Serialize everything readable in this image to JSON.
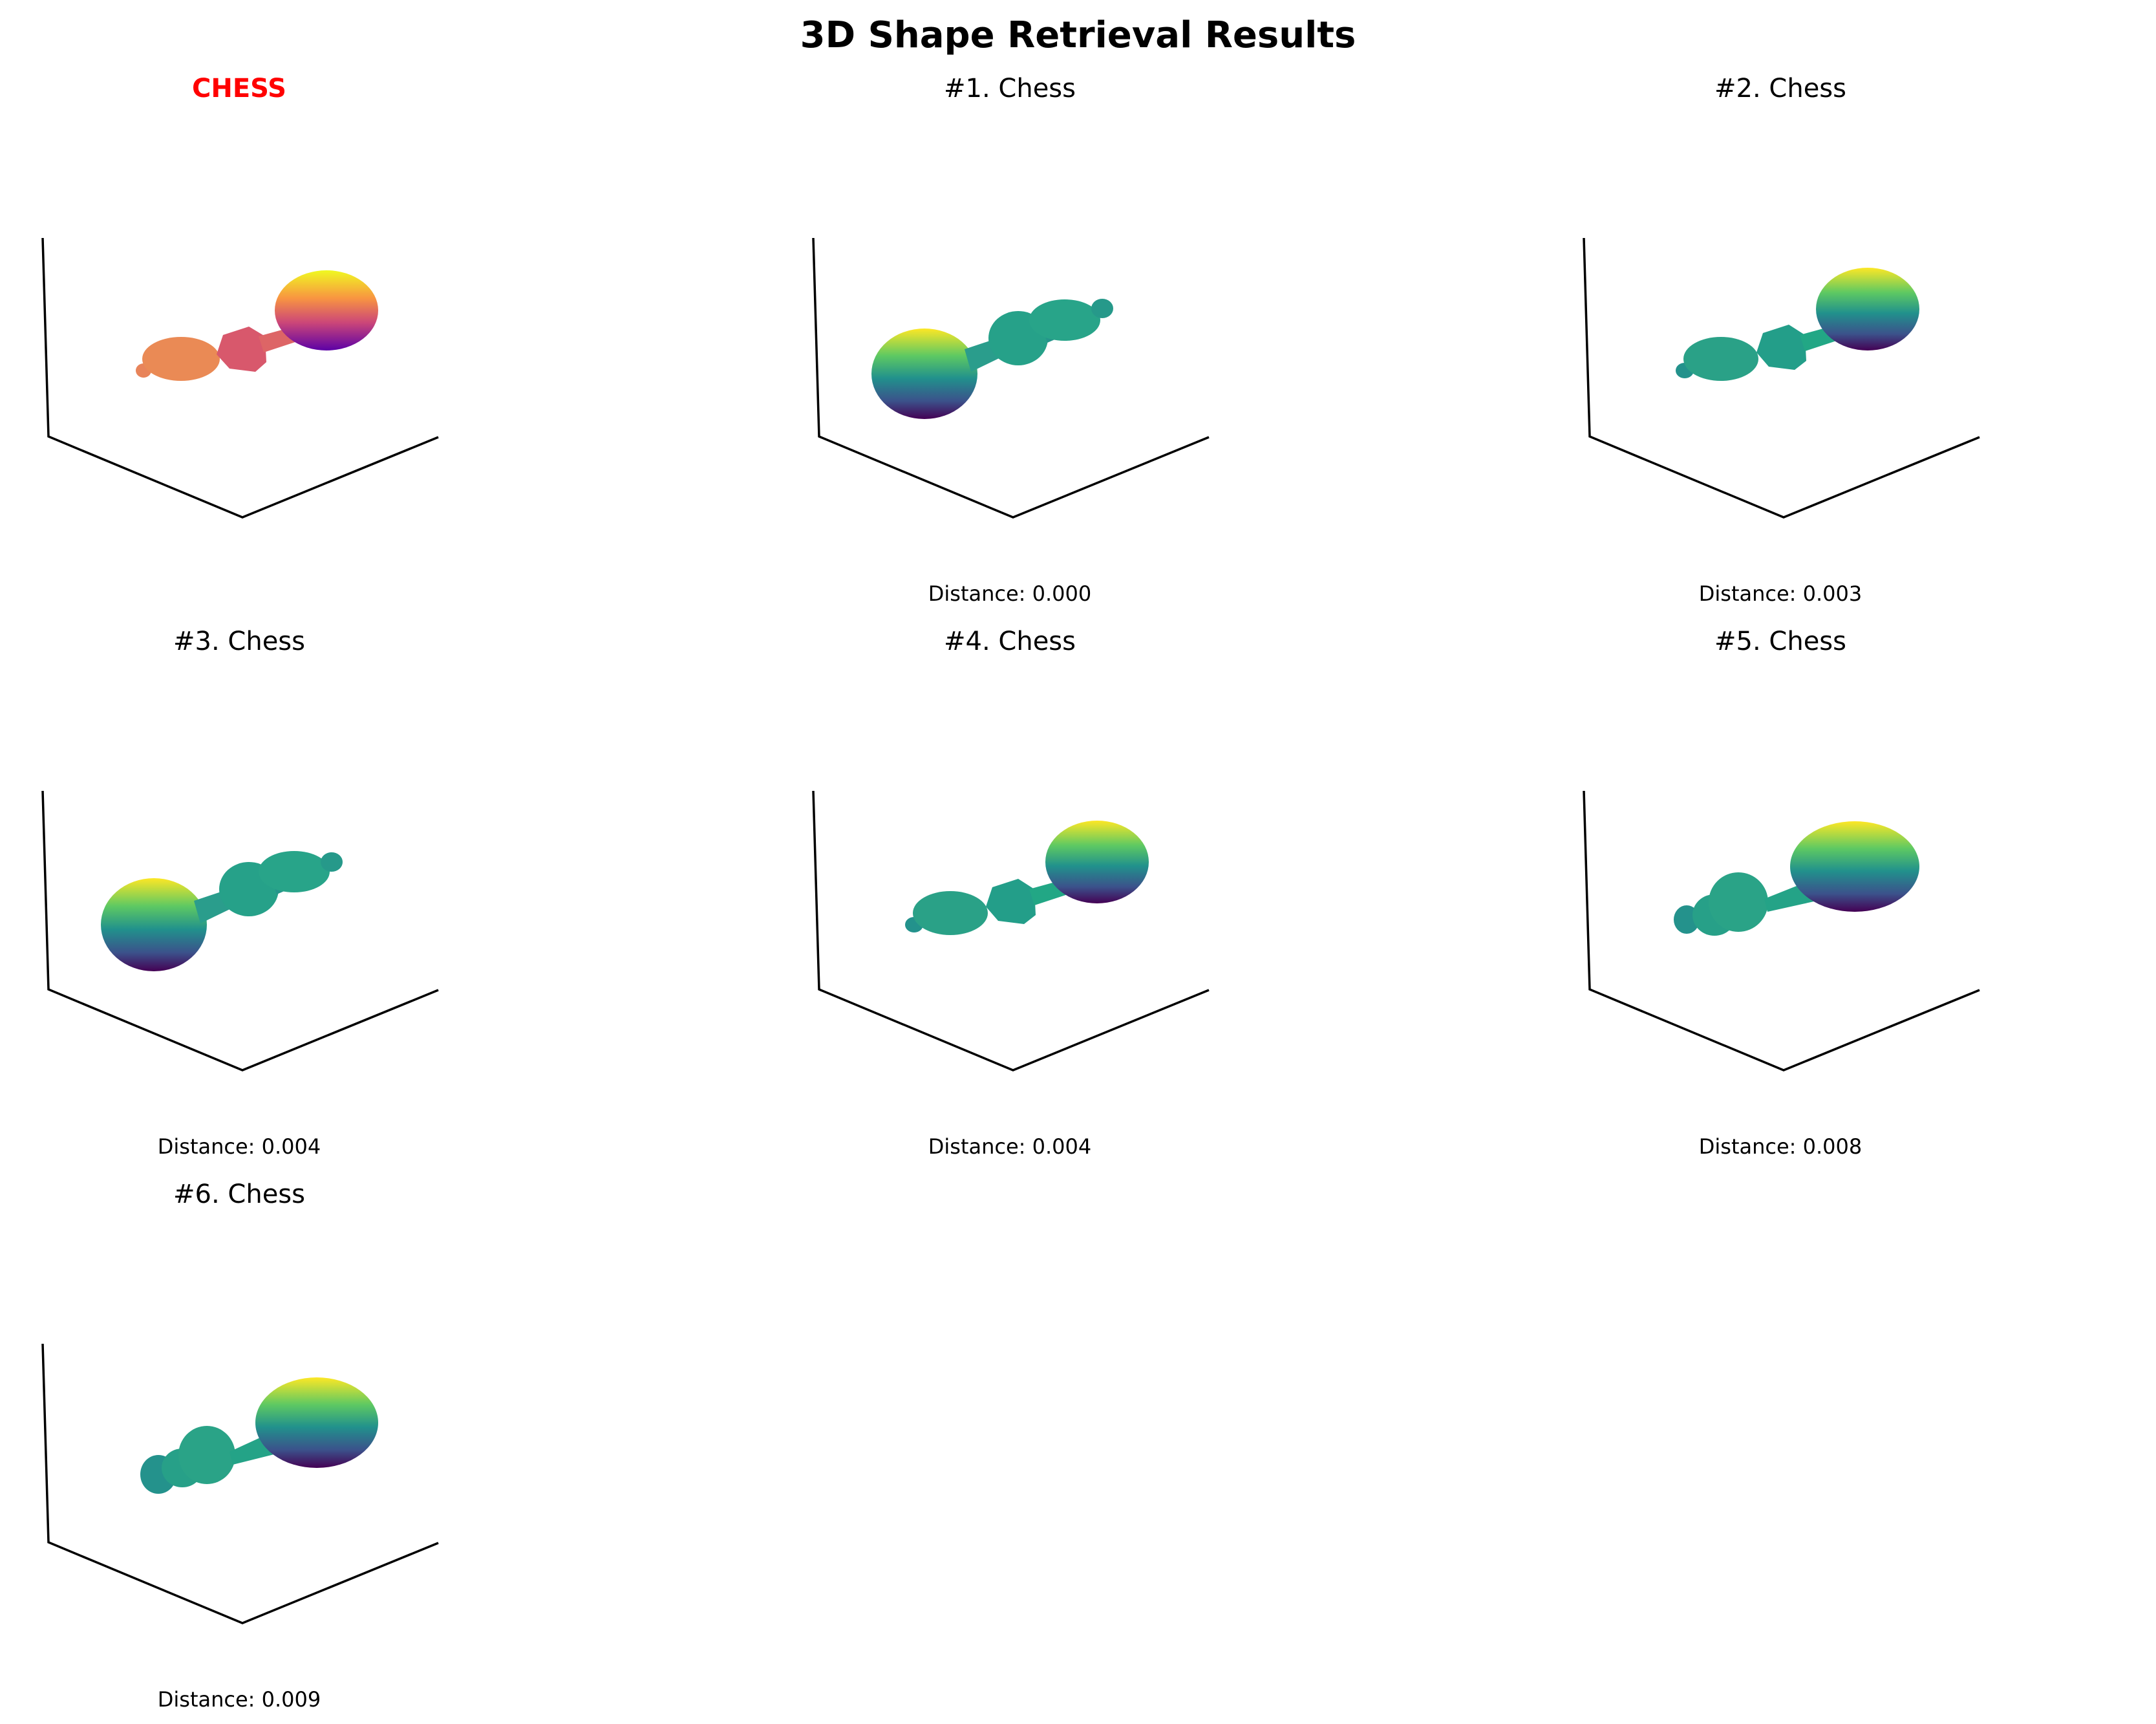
{
  "title": "3D Shape Retrieval Results",
  "query": {
    "label": "CHESS",
    "label_color": "#ff0000",
    "colormap": "plasma"
  },
  "results": [
    {
      "label": "#1. Chess",
      "distance": "Distance: 0.000",
      "colormap": "viridis"
    },
    {
      "label": "#2. Chess",
      "distance": "Distance: 0.003",
      "colormap": "viridis"
    },
    {
      "label": "#3. Chess",
      "distance": "Distance: 0.004",
      "colormap": "viridis"
    },
    {
      "label": "#4. Chess",
      "distance": "Distance: 0.004",
      "colormap": "viridis"
    },
    {
      "label": "#5. Chess",
      "distance": "Distance: 0.008",
      "colormap": "viridis"
    },
    {
      "label": "#6. Chess",
      "distance": "Distance: 0.009",
      "colormap": "viridis"
    }
  ]
}
